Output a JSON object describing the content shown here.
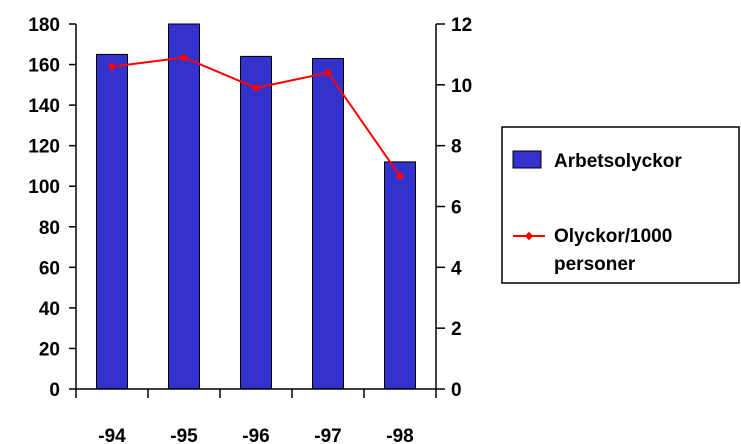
{
  "chart_data": {
    "type": "bar",
    "categories": [
      "-94",
      "-95",
      "-96",
      "-97",
      "-98"
    ],
    "series": [
      {
        "name": "Arbetsolyckor",
        "type": "bar",
        "axis": "left",
        "values": [
          165,
          180,
          164,
          163,
          112
        ],
        "color": "#3333cc"
      },
      {
        "name": "Olyckor/1000 personer",
        "name_lines": [
          "Olyckor/1000",
          "personer"
        ],
        "type": "line",
        "axis": "right",
        "values": [
          10.6,
          10.9,
          9.9,
          10.4,
          7.0
        ],
        "color": "#ff0000"
      }
    ],
    "y_left": {
      "min": 0,
      "max": 180,
      "step": 20,
      "ticks": [
        "0",
        "20",
        "40",
        "60",
        "80",
        "100",
        "120",
        "140",
        "160",
        "180"
      ]
    },
    "y_right": {
      "min": 0,
      "max": 12,
      "step": 2,
      "ticks": [
        "0",
        "2",
        "4",
        "6",
        "8",
        "10",
        "12"
      ]
    },
    "legend": {
      "position": "right"
    },
    "grid": false
  }
}
